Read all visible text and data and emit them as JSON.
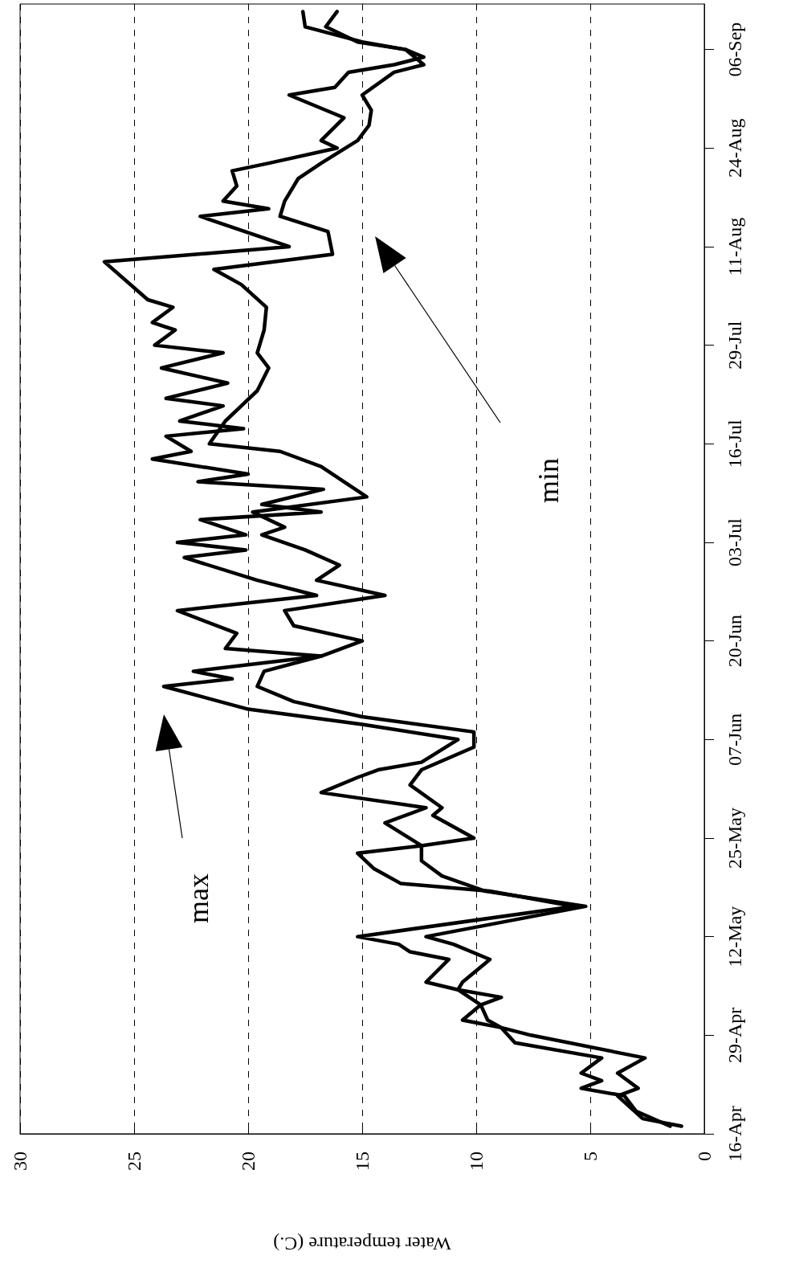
{
  "chart_data": {
    "type": "line",
    "orientation": "horizontal",
    "xlabel": "Water temperature (C.)",
    "ylim": [
      "--04-16",
      "--09-12"
    ],
    "yticks": [
      {
        "value": "--04-16",
        "label": "16-Apr"
      },
      {
        "value": "--04-29",
        "label": "29-Apr"
      },
      {
        "value": "--05-12",
        "label": "12-May"
      },
      {
        "value": "--05-25",
        "label": "25-May"
      },
      {
        "value": "--06-07",
        "label": "07-Jun"
      },
      {
        "value": "--06-20",
        "label": "20-Jun"
      },
      {
        "value": "--07-03",
        "label": "03-Jul"
      },
      {
        "value": "--07-16",
        "label": "16-Jul"
      },
      {
        "value": "--07-29",
        "label": "29-Jul"
      },
      {
        "value": "--08-11",
        "label": "11-Aug"
      },
      {
        "value": "--08-24",
        "label": "24-Aug"
      },
      {
        "value": "--09-06",
        "label": "06-Sep"
      }
    ],
    "xlim": [
      30,
      0
    ],
    "xticks": [
      30,
      25,
      20,
      15,
      10,
      5,
      0
    ],
    "grid": "x",
    "annotations": [
      "max",
      "min"
    ],
    "series": [
      {
        "color": "#000000",
        "x": [
          "--04-17",
          "--04-19",
          "--04-21",
          "--04-22",
          "--04-23",
          "--04-24",
          "--04-26",
          "--04-28",
          "--04-30",
          "--05-01",
          "--05-03",
          "--05-05",
          "--05-06",
          "--05-09",
          "--05-10",
          "--05-11",
          "--05-12",
          "--05-16",
          "--05-18",
          "--05-19",
          "--05-21",
          "--05-23",
          "--05-24",
          "--05-27",
          "--05-29",
          "--05-31",
          "--06-02",
          "--06-03",
          "--06-04",
          "--06-07",
          "--06-09",
          "--06-11",
          "--06-14",
          "--06-15",
          "--06-16",
          "--06-18",
          "--06-19",
          "--06-21",
          "--06-24",
          "--06-26",
          "--06-28",
          "--07-01",
          "--07-02",
          "--07-03",
          "--07-04",
          "--07-06",
          "--07-07",
          "--07-08",
          "--07-10",
          "--07-11",
          "--07-12",
          "--07-14",
          "--07-15",
          "--07-17",
          "--07-18",
          "--07-19",
          "--07-21",
          "--07-22",
          "--07-24",
          "--07-26",
          "--07-28",
          "--07-29",
          "--07-31",
          "--08-01",
          "--08-03",
          "--08-04",
          "--08-09",
          "--08-11",
          "--08-15",
          "--08-16",
          "--08-17",
          "--08-19",
          "--08-21",
          "--08-22",
          "--08-24",
          "--08-25",
          "--08-28",
          "--08-31",
          "--09-01",
          "--09-03",
          "--09-04",
          "--09-05",
          "--09-06",
          "--09-07",
          "--09-09",
          "--09-11"
        ],
        "values": [
          1.5,
          3.0,
          3.5,
          5.4,
          4.5,
          5.4,
          4.5,
          8.3,
          8.9,
          10.6,
          9.8,
          10.8,
          12.2,
          11.2,
          12.9,
          13.4,
          15.2,
          5.7,
          9.4,
          13.3,
          14.5,
          15.2,
          12.4,
          14.0,
          12.2,
          16.8,
          15.2,
          14.3,
          12.4,
          10.8,
          15.0,
          20.0,
          23.7,
          20.7,
          22.4,
          16.8,
          21.0,
          20.5,
          23.1,
          17.0,
          19.6,
          22.8,
          20.1,
          23.1,
          20.1,
          22.1,
          16.8,
          19.4,
          16.7,
          22.2,
          20.0,
          24.2,
          22.5,
          23.6,
          20.2,
          23.0,
          21.1,
          23.6,
          20.9,
          23.8,
          21.1,
          24.1,
          23.2,
          24.2,
          23.3,
          24.4,
          26.3,
          18.2,
          22.1,
          19.1,
          21.1,
          20.5,
          20.7,
          19.1,
          16.1,
          16.8,
          15.8,
          18.2,
          16.2,
          15.6,
          13.6,
          12.3,
          13.1,
          15.0,
          17.5,
          17.6
        ]
      },
      {
        "color": "#000000",
        "x": [
          "--04-17",
          "--04-18",
          "--04-21",
          "--04-22",
          "--04-24",
          "--04-26",
          "--04-29",
          "--04-30",
          "--05-01",
          "--05-03",
          "--05-04",
          "--05-05",
          "--05-06",
          "--05-09",
          "--05-11",
          "--05-12",
          "--05-16",
          "--05-18",
          "--05-20",
          "--05-22",
          "--05-24",
          "--05-25",
          "--05-28",
          "--05-29",
          "--06-01",
          "--06-03",
          "--06-06",
          "--06-08",
          "--06-10",
          "--06-12",
          "--06-14",
          "--06-16",
          "--06-18",
          "--06-20",
          "--06-22",
          "--06-24",
          "--06-26",
          "--06-28",
          "--06-30",
          "--07-02",
          "--07-04",
          "--07-05",
          "--07-07",
          "--07-09",
          "--07-13",
          "--07-15",
          "--07-16",
          "--07-19",
          "--07-21",
          "--07-23",
          "--07-26",
          "--07-28",
          "--07-31",
          "--08-03",
          "--08-06",
          "--08-08",
          "--08-10",
          "--08-13",
          "--08-15",
          "--08-17",
          "--08-20",
          "--08-22",
          "--08-25",
          "--08-27",
          "--08-29",
          "--08-31",
          "--09-03",
          "--09-04",
          "--09-06",
          "--09-07",
          "--09-09",
          "--09-11"
        ],
        "values": [
          1.0,
          2.7,
          3.8,
          2.9,
          3.8,
          2.6,
          7.6,
          8.9,
          9.5,
          9.8,
          8.9,
          10.8,
          10.6,
          9.4,
          11.0,
          12.2,
          5.2,
          9.6,
          11.5,
          12.4,
          12.4,
          10.1,
          11.9,
          11.5,
          12.9,
          12.4,
          10.1,
          10.1,
          15.0,
          18.0,
          19.6,
          19.3,
          16.8,
          15.0,
          18.0,
          18.4,
          14.0,
          17.0,
          16.0,
          17.5,
          19.4,
          18.4,
          19.8,
          14.8,
          16.8,
          18.6,
          21.7,
          21.0,
          20.3,
          19.6,
          19.1,
          19.6,
          19.3,
          19.2,
          20.3,
          21.5,
          16.3,
          16.5,
          18.6,
          18.4,
          17.8,
          16.8,
          15.2,
          14.7,
          14.6,
          15.0,
          13.6,
          12.3,
          13.1,
          15.2,
          16.6,
          16.1
        ]
      }
    ]
  }
}
